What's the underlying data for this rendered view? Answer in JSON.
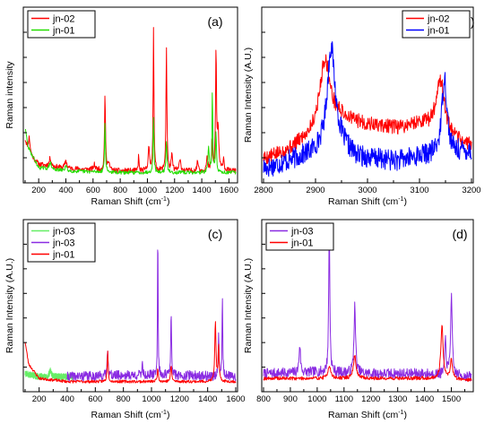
{
  "figure": {
    "background": "#ffffff"
  },
  "chart_data": [
    {
      "id": "a",
      "type": "line",
      "panel_label": "(a)",
      "xlabel": "Raman Shift (cm",
      "xlabel_sup": "-1",
      "xlabel_tail": ")",
      "ylabel": "Raman intensity",
      "xlim": [
        100,
        1650
      ],
      "ylim": [
        0,
        100
      ],
      "xticks": [
        200,
        400,
        600,
        800,
        1000,
        1200,
        1400,
        1600
      ],
      "show_ytick_labels": false,
      "legend": {
        "position": "top-left"
      },
      "series": [
        {
          "name": "jn-02",
          "color": "#ff0000",
          "noise": 1.6,
          "seed": 11,
          "baseline": [
            [
              100,
              23
            ],
            [
              125,
              15
            ],
            [
              200,
              8
            ],
            [
              400,
              5.5
            ],
            [
              800,
              4
            ],
            [
              1200,
              4
            ],
            [
              1600,
              4
            ]
          ],
          "peaks": [
            [
              130,
              10,
              8
            ],
            [
              285,
              5,
              8
            ],
            [
              400,
              5,
              8
            ],
            [
              610,
              3,
              8
            ],
            [
              688,
              48,
              4
            ],
            [
              715,
              6,
              6
            ],
            [
              935,
              10,
              3
            ],
            [
              1010,
              14,
              6
            ],
            [
              1045,
              88,
              3.5
            ],
            [
              1140,
              75,
              4
            ],
            [
              1180,
              9,
              6
            ],
            [
              1240,
              6,
              8
            ],
            [
              1370,
              6,
              6
            ],
            [
              1440,
              8,
              6
            ],
            [
              1475,
              18,
              4
            ],
            [
              1505,
              75,
              4
            ],
            [
              1520,
              25,
              6
            ],
            [
              1560,
              8,
              5
            ]
          ]
        },
        {
          "name": "jn-01",
          "color": "#22dd00",
          "noise": 1.1,
          "seed": 29,
          "baseline": [
            [
              100,
              30
            ],
            [
              125,
              18
            ],
            [
              200,
              6
            ],
            [
              400,
              4
            ],
            [
              800,
              3
            ],
            [
              1200,
              3
            ],
            [
              1600,
              3
            ]
          ],
          "peaks": [
            [
              285,
              4,
              8
            ],
            [
              400,
              3,
              8
            ],
            [
              688,
              30,
              4
            ],
            [
              1045,
              34,
              4
            ],
            [
              1140,
              18,
              5
            ],
            [
              1450,
              16,
              5
            ],
            [
              1478,
              50,
              3.5
            ],
            [
              1505,
              25,
              4
            ]
          ]
        }
      ]
    },
    {
      "id": "b",
      "type": "line",
      "panel_label": "(b)",
      "xlabel": "Raman Shift (cm",
      "xlabel_sup": "-1",
      "xlabel_tail": ")",
      "ylabel": "Raman Intensity (A.U.)",
      "xlim": [
        2800,
        3200
      ],
      "ylim": [
        0,
        100
      ],
      "xticks": [
        2800,
        2900,
        3000,
        3100,
        3200
      ],
      "show_ytick_labels": false,
      "legend": {
        "position": "top-right"
      },
      "series": [
        {
          "name": "jn-02",
          "color": "#ff0000",
          "noise": 4.5,
          "seed": 5,
          "baseline": [
            [
              2810,
              12
            ],
            [
              2850,
              17
            ],
            [
              2890,
              25
            ],
            [
              2945,
              36
            ],
            [
              3000,
              32
            ],
            [
              3060,
              30
            ],
            [
              3100,
              33
            ],
            [
              3160,
              23
            ],
            [
              3190,
              20
            ]
          ],
          "peaks": [
            [
              2918,
              42,
              12
            ],
            [
              3140,
              34,
              10
            ]
          ]
        },
        {
          "name": "jn-01",
          "color": "#0000ff",
          "noise": 6.5,
          "seed": 17,
          "baseline": [
            [
              2810,
              6
            ],
            [
              2850,
              10
            ],
            [
              2890,
              14
            ],
            [
              2945,
              20
            ],
            [
              2980,
              12
            ],
            [
              3060,
              10
            ],
            [
              3100,
              13
            ],
            [
              3160,
              14
            ],
            [
              3190,
              16
            ]
          ],
          "peaks": [
            [
              2930,
              62,
              9
            ],
            [
              3148,
              48,
              6
            ]
          ]
        }
      ]
    },
    {
      "id": "c",
      "type": "line",
      "panel_label": "(c)",
      "xlabel": "Raman Shift (cm",
      "xlabel_sup": "-1",
      "xlabel_tail": ")",
      "ylabel": "Raman Intensity (A.U.)",
      "xlim": [
        100,
        1600
      ],
      "ylim": [
        0,
        100
      ],
      "xticks": [
        200,
        400,
        600,
        800,
        1000,
        1200,
        1400,
        1600
      ],
      "show_ytick_labels": false,
      "legend": {
        "position": "top-left"
      },
      "series": [
        {
          "name": "jn-03",
          "color": "#66ee66",
          "noise": 2.0,
          "seed": 3,
          "xrange": [
            100,
            440
          ],
          "baseline": [
            [
              100,
              8
            ],
            [
              200,
              6
            ],
            [
              440,
              6
            ]
          ],
          "peaks": [
            [
              280,
              4,
              8
            ]
          ]
        },
        {
          "name": "jn-03",
          "color": "#8a2be2",
          "noise": 3.0,
          "seed": 41,
          "xrange": [
            400,
            1600
          ],
          "baseline": [
            [
              400,
              6
            ],
            [
              800,
              7
            ],
            [
              1200,
              7
            ],
            [
              1600,
              6
            ]
          ],
          "peaks": [
            [
              688,
              18,
              4
            ],
            [
              935,
              10,
              3
            ],
            [
              1045,
              92,
              2.5
            ],
            [
              1140,
              42,
              3
            ],
            [
              1478,
              25,
              3
            ],
            [
              1505,
              50,
              3
            ]
          ]
        },
        {
          "name": "jn-01",
          "color": "#ff0000",
          "noise": 0.9,
          "seed": 23,
          "baseline": [
            [
              100,
              28
            ],
            [
              125,
              14
            ],
            [
              200,
              5
            ],
            [
              400,
              3
            ],
            [
              800,
              3
            ],
            [
              1200,
              3
            ],
            [
              1600,
              3
            ]
          ],
          "peaks": [
            [
              688,
              20,
              4
            ],
            [
              1045,
              8,
              5
            ],
            [
              1140,
              10,
              5
            ],
            [
              1455,
              38,
              5
            ],
            [
              1478,
              22,
              4
            ]
          ]
        }
      ]
    },
    {
      "id": "d",
      "type": "line",
      "panel_label": "(d)",
      "xlabel": "Raman Shift (cm",
      "xlabel_sup": "-1",
      "xlabel_tail": ")",
      "ylabel": "Raman Intensity (A.U.)",
      "xlim": [
        800,
        1575
      ],
      "ylim": [
        0,
        100
      ],
      "xticks": [
        800,
        900,
        1000,
        1100,
        1200,
        1300,
        1400,
        1500
      ],
      "show_ytick_labels": false,
      "legend": {
        "position": "top-left"
      },
      "series": [
        {
          "name": "jn-03",
          "color": "#8a2be2",
          "noise": 3.2,
          "seed": 7,
          "baseline": [
            [
              800,
              8
            ],
            [
              1000,
              9
            ],
            [
              1200,
              8
            ],
            [
              1400,
              8
            ],
            [
              1575,
              6
            ]
          ],
          "peaks": [
            [
              935,
              18,
              3
            ],
            [
              1045,
              92,
              2.5
            ],
            [
              1140,
              42,
              3.5
            ],
            [
              1478,
              22,
              3
            ],
            [
              1500,
              50,
              3.5
            ]
          ]
        },
        {
          "name": "jn-01",
          "color": "#ff0000",
          "noise": 1.1,
          "seed": 19,
          "baseline": [
            [
              800,
              5
            ],
            [
              1000,
              5
            ],
            [
              1200,
              5
            ],
            [
              1400,
              5
            ],
            [
              1575,
              4
            ]
          ],
          "peaks": [
            [
              1045,
              8,
              6
            ],
            [
              1140,
              14,
              6
            ],
            [
              1465,
              34,
              5
            ],
            [
              1500,
              12,
              5
            ]
          ]
        }
      ]
    }
  ]
}
